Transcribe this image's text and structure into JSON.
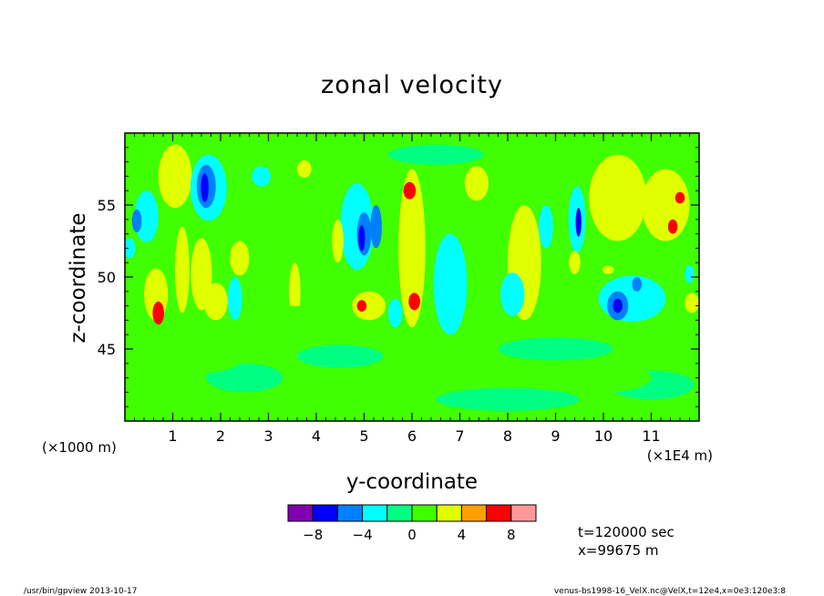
{
  "chart_data": {
    "type": "heatmap",
    "title": "zonal velocity",
    "xlabel": "y-coordinate",
    "ylabel": "z-coordinate",
    "x_unit_left": "(×1000 m)",
    "x_unit_right": "(×1E4 m)",
    "xlim": [
      0,
      12
    ],
    "ylim": [
      40,
      60
    ],
    "x_ticks": [
      1,
      2,
      3,
      4,
      5,
      6,
      7,
      8,
      9,
      10,
      11
    ],
    "x_tick_labels": [
      "1",
      "2",
      "3",
      "4",
      "5",
      "6",
      "7",
      "8",
      "9",
      "10",
      "11"
    ],
    "y_ticks": [
      45,
      50,
      55
    ],
    "y_tick_labels": [
      "45",
      "50",
      "55"
    ],
    "background_level": 0,
    "field_blobs": [
      {
        "x": 1.05,
        "z": 57.0,
        "rx": 0.35,
        "rz": 2.2,
        "v": 3
      },
      {
        "x": 0.45,
        "z": 54.2,
        "rx": 0.25,
        "rz": 1.8,
        "v": -3
      },
      {
        "x": 0.25,
        "z": 53.9,
        "rx": 0.1,
        "rz": 0.8,
        "v": -5
      },
      {
        "x": 0.65,
        "z": 48.8,
        "rx": 0.25,
        "rz": 1.8,
        "v": 3
      },
      {
        "x": 0.7,
        "z": 47.5,
        "rx": 0.12,
        "rz": 0.8,
        "v": 6
      },
      {
        "x": 1.2,
        "z": 50.5,
        "rx": 0.15,
        "rz": 3.0,
        "v": 3
      },
      {
        "x": 1.75,
        "z": 56.2,
        "rx": 0.38,
        "rz": 2.3,
        "v": -3
      },
      {
        "x": 1.7,
        "z": 56.3,
        "rx": 0.2,
        "rz": 1.5,
        "v": -5
      },
      {
        "x": 1.67,
        "z": 56.2,
        "rx": 0.08,
        "rz": 1.0,
        "v": -7
      },
      {
        "x": 1.6,
        "z": 50.2,
        "rx": 0.22,
        "rz": 2.5,
        "v": 3
      },
      {
        "x": 2.4,
        "z": 51.3,
        "rx": 0.2,
        "rz": 1.2,
        "v": 3
      },
      {
        "x": 2.3,
        "z": 48.5,
        "rx": 0.15,
        "rz": 1.5,
        "v": -3
      },
      {
        "x": 1.9,
        "z": 48.3,
        "rx": 0.25,
        "rz": 1.3,
        "v": 3
      },
      {
        "x": 2.85,
        "z": 57.0,
        "rx": 0.2,
        "rz": 0.7,
        "v": -3
      },
      {
        "x": 3.55,
        "z": 49.0,
        "rx": 0.12,
        "rz": 2.0,
        "v": 3
      },
      {
        "x": 3.75,
        "z": 57.5,
        "rx": 0.15,
        "rz": 0.6,
        "v": 3
      },
      {
        "x": 4.85,
        "z": 53.5,
        "rx": 0.35,
        "rz": 3.0,
        "v": -3
      },
      {
        "x": 5.0,
        "z": 53.0,
        "rx": 0.15,
        "rz": 1.5,
        "v": -5
      },
      {
        "x": 4.95,
        "z": 52.7,
        "rx": 0.07,
        "rz": 0.9,
        "v": -7
      },
      {
        "x": 5.25,
        "z": 53.5,
        "rx": 0.12,
        "rz": 1.5,
        "v": -5
      },
      {
        "x": 5.1,
        "z": 48.0,
        "rx": 0.35,
        "rz": 1.0,
        "v": 3
      },
      {
        "x": 4.95,
        "z": 48.0,
        "rx": 0.1,
        "rz": 0.4,
        "v": 6
      },
      {
        "x": 4.45,
        "z": 52.5,
        "rx": 0.12,
        "rz": 1.5,
        "v": 3
      },
      {
        "x": 6.0,
        "z": 52.0,
        "rx": 0.28,
        "rz": 5.5,
        "v": 3
      },
      {
        "x": 5.95,
        "z": 56.0,
        "rx": 0.13,
        "rz": 0.6,
        "v": 6
      },
      {
        "x": 6.05,
        "z": 48.3,
        "rx": 0.12,
        "rz": 0.6,
        "v": 6
      },
      {
        "x": 5.65,
        "z": 47.5,
        "rx": 0.15,
        "rz": 1.0,
        "v": -3
      },
      {
        "x": 6.8,
        "z": 49.5,
        "rx": 0.35,
        "rz": 3.5,
        "v": -3
      },
      {
        "x": 7.35,
        "z": 56.5,
        "rx": 0.25,
        "rz": 1.2,
        "v": 3
      },
      {
        "x": 8.35,
        "z": 51.0,
        "rx": 0.35,
        "rz": 4.0,
        "v": 3
      },
      {
        "x": 8.1,
        "z": 48.8,
        "rx": 0.25,
        "rz": 1.5,
        "v": -3
      },
      {
        "x": 8.8,
        "z": 53.5,
        "rx": 0.15,
        "rz": 1.5,
        "v": -3
      },
      {
        "x": 9.45,
        "z": 54.0,
        "rx": 0.18,
        "rz": 2.3,
        "v": -3
      },
      {
        "x": 9.48,
        "z": 53.8,
        "rx": 0.06,
        "rz": 1.0,
        "v": -7
      },
      {
        "x": 9.4,
        "z": 51.0,
        "rx": 0.12,
        "rz": 0.8,
        "v": 3
      },
      {
        "x": 10.6,
        "z": 48.5,
        "rx": 0.7,
        "rz": 1.6,
        "v": -3
      },
      {
        "x": 10.3,
        "z": 48.0,
        "rx": 0.22,
        "rz": 1.0,
        "v": -5
      },
      {
        "x": 10.3,
        "z": 48.0,
        "rx": 0.1,
        "rz": 0.5,
        "v": -7
      },
      {
        "x": 10.7,
        "z": 49.5,
        "rx": 0.1,
        "rz": 0.5,
        "v": -5
      },
      {
        "x": 10.3,
        "z": 55.5,
        "rx": 0.6,
        "rz": 3.0,
        "v": 3
      },
      {
        "x": 11.3,
        "z": 55.0,
        "rx": 0.5,
        "rz": 2.5,
        "v": 3
      },
      {
        "x": 11.45,
        "z": 53.5,
        "rx": 0.1,
        "rz": 0.5,
        "v": 6
      },
      {
        "x": 11.6,
        "z": 55.5,
        "rx": 0.1,
        "rz": 0.4,
        "v": 6
      },
      {
        "x": 10.1,
        "z": 50.5,
        "rx": 0.12,
        "rz": 0.3,
        "v": 3
      },
      {
        "x": 11.8,
        "z": 50.2,
        "rx": 0.1,
        "rz": 0.6,
        "v": -3
      },
      {
        "x": 11.85,
        "z": 48.2,
        "rx": 0.15,
        "rz": 0.7,
        "v": 3
      },
      {
        "x": 0.1,
        "z": 52.0,
        "rx": 0.12,
        "rz": 0.7,
        "v": -3
      },
      {
        "x": 2.5,
        "z": 43.0,
        "rx": 0.8,
        "rz": 1.0,
        "v": -1
      },
      {
        "x": 4.5,
        "z": 44.5,
        "rx": 0.9,
        "rz": 0.8,
        "v": -1
      },
      {
        "x": 8.0,
        "z": 41.5,
        "rx": 1.5,
        "rz": 0.8,
        "v": -1
      },
      {
        "x": 9.0,
        "z": 45.0,
        "rx": 1.2,
        "rz": 0.8,
        "v": -1
      },
      {
        "x": 11.0,
        "z": 42.5,
        "rx": 0.9,
        "rz": 1.0,
        "v": -1
      },
      {
        "x": 6.5,
        "z": 58.5,
        "rx": 1.0,
        "rz": 0.7,
        "v": -1
      },
      {
        "x": 1.5,
        "z": 44.5,
        "rx": 1.0,
        "rz": 1.2,
        "v": 1
      },
      {
        "x": 6.5,
        "z": 43.5,
        "rx": 1.2,
        "rz": 1.2,
        "v": 1
      },
      {
        "x": 10.0,
        "z": 43.0,
        "rx": 1.0,
        "rz": 1.0,
        "v": 1
      },
      {
        "x": 3.5,
        "z": 47.0,
        "rx": 1.0,
        "rz": 1.0,
        "v": 1
      }
    ],
    "colorbar": {
      "bounds": [
        -10,
        -8,
        -6,
        -4,
        -2,
        0,
        2,
        4,
        6,
        8,
        10
      ],
      "colors": [
        "#8000b0",
        "#0000ff",
        "#0080ff",
        "#00ffff",
        "#00ff80",
        "#40ff00",
        "#e0ff00",
        "#ffa000",
        "#ff0000",
        "#ff9999"
      ],
      "tick_values": [
        -8,
        -4,
        0,
        4,
        8
      ],
      "tick_labels": [
        "−8",
        "−4",
        "0",
        "4",
        "8"
      ]
    }
  },
  "annotations": {
    "time": "t=120000 sec",
    "position": "x=99675 m"
  },
  "footer": {
    "left": "/usr/bin/gpview  2013-10-17",
    "right": "venus-bs1998-16_VelX.nc@VelX,t=12e4,x=0e3:120e3:8"
  }
}
